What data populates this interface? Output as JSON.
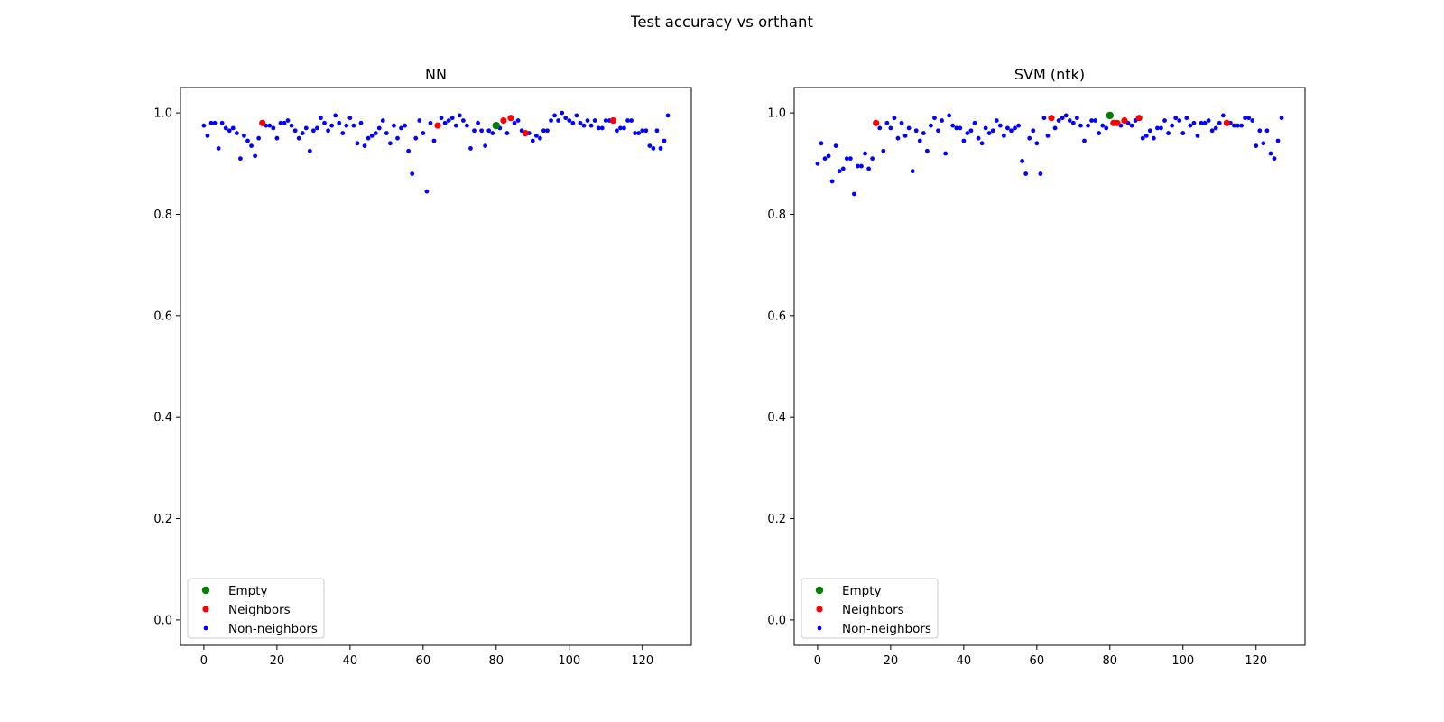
{
  "figure_title": "Test accuracy vs orthant",
  "colors": {
    "empty": "#008000",
    "neighbors": "#ff0000",
    "non_neighbors": "#0000ff",
    "axes": "#000000",
    "background": "#ffffff"
  },
  "chart_data": [
    {
      "type": "scatter",
      "title": "NN",
      "xlabel": "",
      "ylabel": "",
      "xlim": [
        -6.4,
        133.4
      ],
      "ylim": [
        -0.05,
        1.05
      ],
      "xticks": [
        0,
        20,
        40,
        60,
        80,
        100,
        120
      ],
      "yticks": [
        0.0,
        0.2,
        0.4,
        0.6,
        0.8,
        1.0
      ],
      "grid": false,
      "legend_placement": "lower-left",
      "series": [
        {
          "name": "Empty",
          "marker": "large-dot",
          "x": [
            80
          ],
          "y": [
            0.975
          ]
        },
        {
          "name": "Neighbors",
          "marker": "large-dot",
          "x": [
            16,
            64,
            82,
            84,
            88,
            112
          ],
          "y": [
            0.98,
            0.975,
            0.985,
            0.99,
            0.96,
            0.985
          ]
        },
        {
          "name": "Non-neighbors",
          "marker": "small-dot",
          "x": [
            0,
            1,
            2,
            3,
            4,
            5,
            6,
            7,
            8,
            9,
            10,
            11,
            12,
            13,
            14,
            15,
            17,
            18,
            19,
            20,
            21,
            22,
            23,
            24,
            25,
            26,
            27,
            28,
            29,
            30,
            31,
            32,
            33,
            34,
            35,
            36,
            37,
            38,
            39,
            40,
            41,
            42,
            43,
            44,
            45,
            46,
            47,
            48,
            49,
            50,
            51,
            52,
            53,
            54,
            55,
            56,
            57,
            58,
            59,
            60,
            61,
            62,
            63,
            65,
            66,
            67,
            68,
            69,
            70,
            71,
            72,
            73,
            74,
            75,
            76,
            77,
            78,
            79,
            81,
            83,
            85,
            86,
            87,
            89,
            90,
            91,
            92,
            93,
            94,
            95,
            96,
            97,
            98,
            99,
            100,
            101,
            102,
            103,
            104,
            105,
            106,
            107,
            108,
            109,
            110,
            111,
            113,
            114,
            115,
            116,
            117,
            118,
            119,
            120,
            121,
            122,
            123,
            124,
            125,
            126,
            127
          ],
          "y": [
            0.975,
            0.955,
            0.98,
            0.98,
            0.93,
            0.98,
            0.97,
            0.965,
            0.97,
            0.96,
            0.91,
            0.955,
            0.945,
            0.935,
            0.915,
            0.95,
            0.975,
            0.975,
            0.97,
            0.95,
            0.98,
            0.98,
            0.985,
            0.975,
            0.965,
            0.95,
            0.96,
            0.97,
            0.925,
            0.965,
            0.97,
            0.99,
            0.98,
            0.965,
            0.975,
            0.995,
            0.98,
            0.96,
            0.975,
            0.99,
            0.975,
            0.94,
            0.98,
            0.935,
            0.95,
            0.955,
            0.96,
            0.97,
            0.985,
            0.96,
            0.94,
            0.975,
            0.95,
            0.97,
            0.975,
            0.925,
            0.88,
            0.95,
            0.985,
            0.96,
            0.845,
            0.98,
            0.945,
            0.99,
            0.98,
            0.985,
            0.99,
            0.975,
            0.995,
            0.985,
            0.975,
            0.93,
            0.965,
            0.98,
            0.965,
            0.935,
            0.965,
            0.96,
            0.97,
            0.96,
            0.98,
            0.985,
            0.965,
            0.96,
            0.945,
            0.955,
            0.95,
            0.965,
            0.965,
            0.985,
            0.995,
            0.985,
            1.0,
            0.99,
            0.985,
            0.98,
            0.995,
            0.98,
            0.975,
            0.985,
            0.975,
            0.985,
            0.97,
            0.97,
            0.985,
            0.985,
            0.965,
            0.97,
            0.97,
            0.985,
            0.985,
            0.96,
            0.96,
            0.965,
            0.965,
            0.935,
            0.93,
            0.965,
            0.93,
            0.945,
            0.995
          ]
        }
      ]
    },
    {
      "type": "scatter",
      "title": "SVM (ntk)",
      "xlabel": "",
      "ylabel": "",
      "xlim": [
        -6.4,
        133.4
      ],
      "ylim": [
        -0.05,
        1.05
      ],
      "xticks": [
        0,
        20,
        40,
        60,
        80,
        100,
        120
      ],
      "yticks": [
        0.0,
        0.2,
        0.4,
        0.6,
        0.8,
        1.0
      ],
      "grid": false,
      "legend_placement": "lower-left",
      "series": [
        {
          "name": "Empty",
          "marker": "large-dot",
          "x": [
            80
          ],
          "y": [
            0.995
          ]
        },
        {
          "name": "Neighbors",
          "marker": "large-dot",
          "x": [
            16,
            64,
            81,
            82,
            84,
            88,
            112
          ],
          "y": [
            0.98,
            0.99,
            0.98,
            0.98,
            0.985,
            0.99,
            0.98
          ]
        },
        {
          "name": "Non-neighbors",
          "marker": "small-dot",
          "x": [
            0,
            1,
            2,
            3,
            4,
            5,
            6,
            7,
            8,
            9,
            10,
            11,
            12,
            13,
            14,
            15,
            17,
            18,
            19,
            20,
            21,
            22,
            23,
            24,
            25,
            26,
            27,
            28,
            29,
            30,
            31,
            32,
            33,
            34,
            35,
            36,
            37,
            38,
            39,
            40,
            41,
            42,
            43,
            44,
            45,
            46,
            47,
            48,
            49,
            50,
            51,
            52,
            53,
            54,
            55,
            56,
            57,
            58,
            59,
            60,
            61,
            62,
            63,
            65,
            66,
            67,
            68,
            69,
            70,
            71,
            72,
            73,
            74,
            75,
            76,
            77,
            78,
            79,
            83,
            85,
            86,
            87,
            89,
            90,
            91,
            92,
            93,
            94,
            95,
            96,
            97,
            98,
            99,
            100,
            101,
            102,
            103,
            104,
            105,
            106,
            107,
            108,
            109,
            110,
            111,
            113,
            114,
            115,
            116,
            117,
            118,
            119,
            120,
            121,
            122,
            123,
            124,
            125,
            126,
            127
          ],
          "y": [
            0.9,
            0.94,
            0.91,
            0.915,
            0.865,
            0.935,
            0.885,
            0.89,
            0.91,
            0.91,
            0.84,
            0.895,
            0.895,
            0.92,
            0.89,
            0.91,
            0.97,
            0.925,
            0.98,
            0.97,
            0.99,
            0.95,
            0.98,
            0.955,
            0.97,
            0.885,
            0.965,
            0.945,
            0.96,
            0.925,
            0.975,
            0.99,
            0.965,
            0.985,
            0.92,
            0.995,
            0.975,
            0.97,
            0.97,
            0.945,
            0.96,
            0.965,
            0.98,
            0.95,
            0.94,
            0.97,
            0.96,
            0.965,
            0.985,
            0.975,
            0.955,
            0.97,
            0.965,
            0.97,
            0.975,
            0.905,
            0.88,
            0.95,
            0.965,
            0.94,
            0.88,
            0.99,
            0.955,
            0.97,
            0.985,
            0.99,
            0.995,
            0.985,
            0.98,
            0.99,
            0.975,
            0.945,
            0.975,
            0.985,
            0.985,
            0.96,
            0.975,
            0.97,
            0.975,
            0.98,
            0.975,
            0.985,
            0.95,
            0.955,
            0.965,
            0.95,
            0.97,
            0.97,
            0.985,
            0.96,
            0.975,
            0.99,
            0.985,
            0.96,
            0.99,
            0.975,
            0.98,
            0.955,
            0.98,
            0.98,
            0.985,
            0.965,
            0.97,
            0.98,
            0.995,
            0.98,
            0.975,
            0.975,
            0.975,
            0.99,
            0.99,
            0.985,
            0.935,
            0.965,
            0.94,
            0.965,
            0.92,
            0.91,
            0.945,
            0.99
          ]
        }
      ]
    }
  ]
}
